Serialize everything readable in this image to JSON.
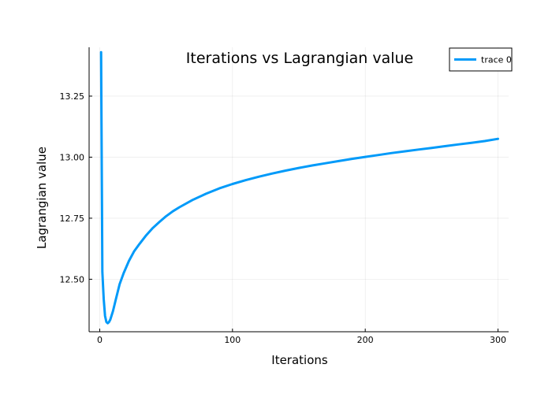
{
  "chart_data": {
    "type": "line",
    "title": "Iterations vs Lagrangian value",
    "xlabel": "Iterations",
    "ylabel": "Lagrangian value",
    "xlim": [
      -8,
      308
    ],
    "ylim": [
      12.285,
      13.45
    ],
    "x_ticks": [
      0,
      100,
      200,
      300
    ],
    "x_tick_labels": [
      "0",
      "100",
      "200",
      "300"
    ],
    "y_ticks": [
      12.5,
      12.75,
      13.0,
      13.25
    ],
    "y_tick_labels": [
      "12.50",
      "12.75",
      "13.00",
      "13.25"
    ],
    "grid": true,
    "legend_position": "top-right",
    "series": [
      {
        "name": "trace 0",
        "color": "#009af9",
        "x": [
          1,
          2,
          3,
          4,
          5,
          6,
          7,
          8,
          10,
          12,
          15,
          18,
          22,
          26,
          30,
          35,
          40,
          45,
          50,
          55,
          60,
          70,
          80,
          90,
          100,
          110,
          120,
          130,
          140,
          150,
          160,
          170,
          180,
          190,
          200,
          210,
          220,
          230,
          240,
          250,
          260,
          270,
          280,
          290,
          300
        ],
        "y": [
          13.43,
          12.53,
          12.42,
          12.35,
          12.325,
          12.32,
          12.325,
          12.335,
          12.37,
          12.415,
          12.48,
          12.525,
          12.575,
          12.615,
          12.645,
          12.68,
          12.71,
          12.735,
          12.758,
          12.778,
          12.795,
          12.825,
          12.85,
          12.872,
          12.89,
          12.906,
          12.92,
          12.933,
          12.945,
          12.956,
          12.966,
          12.975,
          12.984,
          12.993,
          13.001,
          13.009,
          13.017,
          13.024,
          13.031,
          13.038,
          13.045,
          13.052,
          13.059,
          13.066,
          13.075
        ]
      }
    ]
  }
}
